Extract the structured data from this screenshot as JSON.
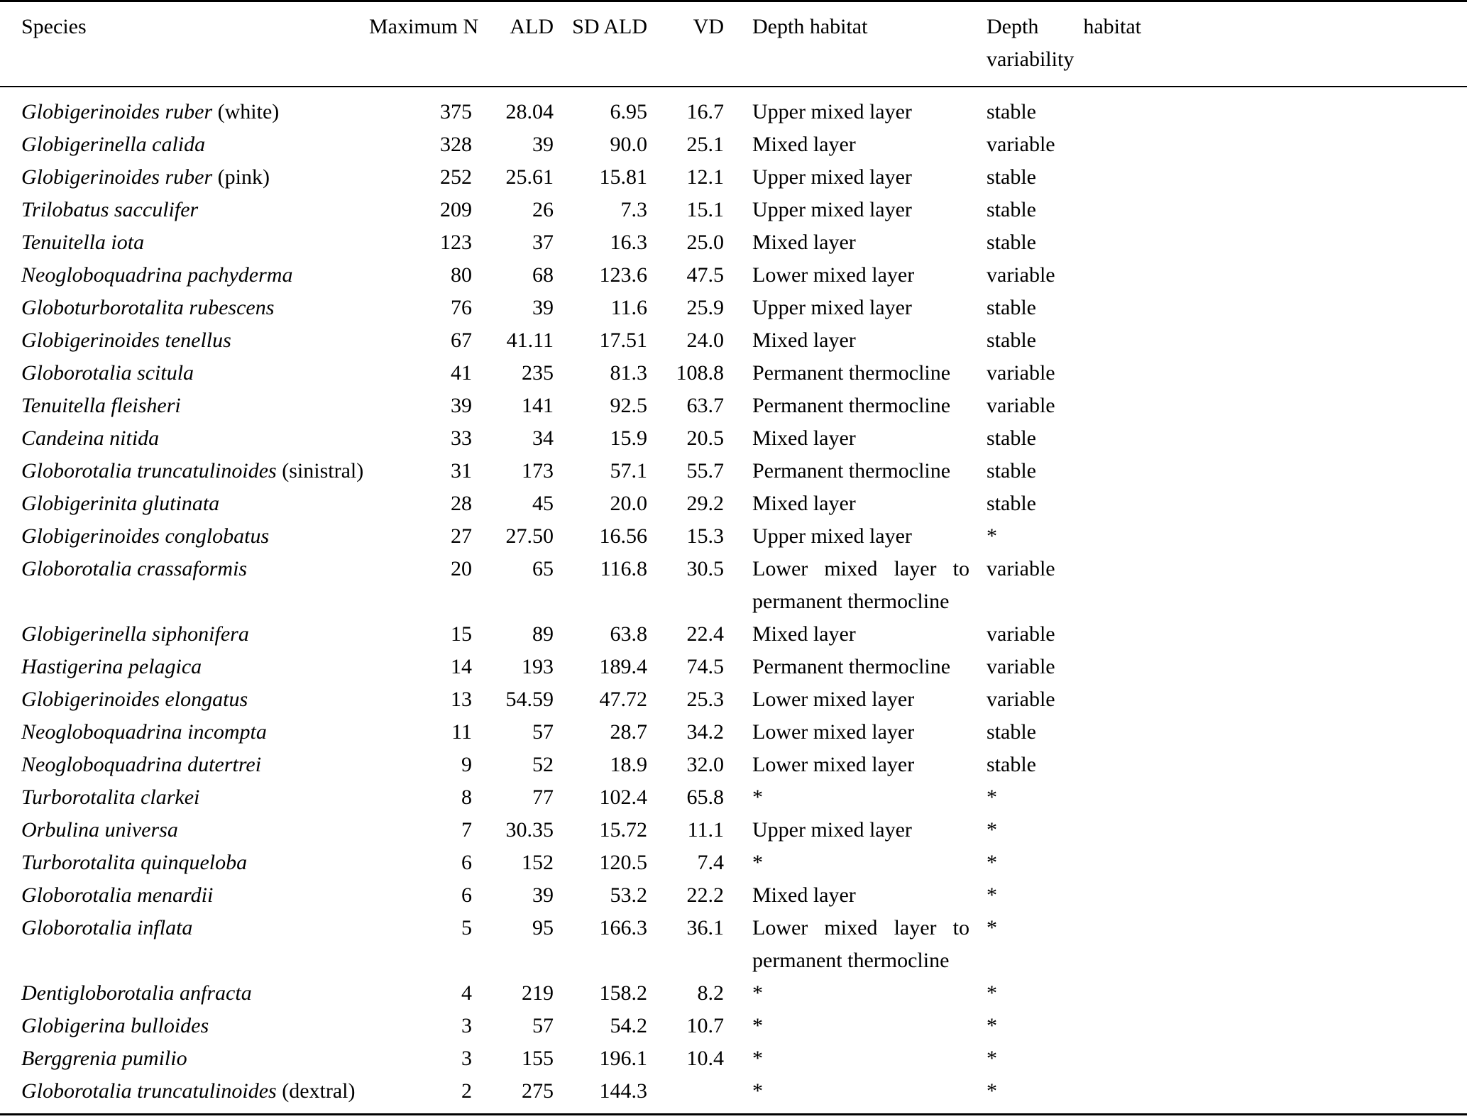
{
  "table": {
    "columns": [
      {
        "key": "species",
        "label": "Species"
      },
      {
        "key": "max_n",
        "label": "Maximum N"
      },
      {
        "key": "ald",
        "label": "ALD"
      },
      {
        "key": "sd_ald",
        "label": "SD ALD"
      },
      {
        "key": "vd",
        "label": "VD"
      },
      {
        "key": "habitat",
        "label": "Depth habitat"
      },
      {
        "key": "variability",
        "label": "Depth habitat variability"
      }
    ],
    "rows": [
      {
        "species": "Globigerinoides ruber",
        "species_suffix": "(white)",
        "max_n": "375",
        "ald": "28.04",
        "sd_ald": "6.95",
        "vd": "16.7",
        "depth_habitat": "Upper mixed layer",
        "variability": "stable"
      },
      {
        "species": "Globigerinella calida",
        "species_suffix": "",
        "max_n": "328",
        "ald": "39",
        "sd_ald": "90.0",
        "vd": "25.1",
        "depth_habitat": "Mixed layer",
        "variability": "variable"
      },
      {
        "species": "Globigerinoides ruber",
        "species_suffix": "(pink)",
        "max_n": "252",
        "ald": "25.61",
        "sd_ald": "15.81",
        "vd": "12.1",
        "depth_habitat": "Upper mixed layer",
        "variability": "stable"
      },
      {
        "species": "Trilobatus sacculifer",
        "species_suffix": "",
        "max_n": "209",
        "ald": "26",
        "sd_ald": "7.3",
        "vd": "15.1",
        "depth_habitat": "Upper mixed layer",
        "variability": "stable"
      },
      {
        "species": "Tenuitella iota",
        "species_suffix": "",
        "max_n": "123",
        "ald": "37",
        "sd_ald": "16.3",
        "vd": "25.0",
        "depth_habitat": "Mixed layer",
        "variability": "stable"
      },
      {
        "species": "Neogloboquadrina pachyderma",
        "species_suffix": "",
        "max_n": "80",
        "ald": "68",
        "sd_ald": "123.6",
        "vd": "47.5",
        "depth_habitat": "Lower mixed layer",
        "variability": "variable"
      },
      {
        "species": "Globoturborotalita rubescens",
        "species_suffix": "",
        "max_n": "76",
        "ald": "39",
        "sd_ald": "11.6",
        "vd": "25.9",
        "depth_habitat": "Upper mixed layer",
        "variability": "stable"
      },
      {
        "species": "Globigerinoides tenellus",
        "species_suffix": "",
        "max_n": "67",
        "ald": "41.11",
        "sd_ald": "17.51",
        "vd": "24.0",
        "depth_habitat": "Mixed layer",
        "variability": "stable"
      },
      {
        "species": "Globorotalia scitula",
        "species_suffix": "",
        "max_n": "41",
        "ald": "235",
        "sd_ald": "81.3",
        "vd": "108.8",
        "depth_habitat": "Permanent thermocline",
        "variability": "variable"
      },
      {
        "species": "Tenuitella fleisheri",
        "species_suffix": "",
        "max_n": "39",
        "ald": "141",
        "sd_ald": "92.5",
        "vd": "63.7",
        "depth_habitat": "Permanent thermocline",
        "variability": "variable"
      },
      {
        "species": "Candeina nitida",
        "species_suffix": "",
        "max_n": "33",
        "ald": "34",
        "sd_ald": "15.9",
        "vd": "20.5",
        "depth_habitat": "Mixed layer",
        "variability": "stable"
      },
      {
        "species": "Globorotalia truncatulinoides",
        "species_suffix": "(sinistral)",
        "max_n": "31",
        "ald": "173",
        "sd_ald": "57.1",
        "vd": "55.7",
        "depth_habitat": "Permanent thermocline",
        "variability": "stable"
      },
      {
        "species": "Globigerinita glutinata",
        "species_suffix": "",
        "max_n": "28",
        "ald": "45",
        "sd_ald": "20.0",
        "vd": "29.2",
        "depth_habitat": "Mixed layer",
        "variability": "stable"
      },
      {
        "species": "Globigerinoides conglobatus",
        "species_suffix": "",
        "max_n": "27",
        "ald": "27.50",
        "sd_ald": "16.56",
        "vd": "15.3",
        "depth_habitat": "Upper mixed layer",
        "variability": "*"
      },
      {
        "species": "Globorotalia crassaformis",
        "species_suffix": "",
        "max_n": "20",
        "ald": "65",
        "sd_ald": "116.8",
        "vd": "30.5",
        "depth_habitat": "Lower mixed layer to permanent thermocline",
        "variability": "variable"
      },
      {
        "species": "Globigerinella siphonifera",
        "species_suffix": "",
        "max_n": "15",
        "ald": "89",
        "sd_ald": "63.8",
        "vd": "22.4",
        "depth_habitat": "Mixed layer",
        "variability": "variable"
      },
      {
        "species": "Hastigerina pelagica",
        "species_suffix": "",
        "max_n": "14",
        "ald": "193",
        "sd_ald": "189.4",
        "vd": "74.5",
        "depth_habitat": "Permanent thermocline",
        "variability": "variable"
      },
      {
        "species": "Globigerinoides elongatus",
        "species_suffix": "",
        "max_n": "13",
        "ald": "54.59",
        "sd_ald": "47.72",
        "vd": "25.3",
        "depth_habitat": "Lower mixed layer",
        "variability": "variable"
      },
      {
        "species": "Neogloboquadrina incompta",
        "species_suffix": "",
        "max_n": "11",
        "ald": "57",
        "sd_ald": "28.7",
        "vd": "34.2",
        "depth_habitat": "Lower mixed layer",
        "variability": "stable"
      },
      {
        "species": "Neogloboquadrina dutertrei",
        "species_suffix": "",
        "max_n": "9",
        "ald": "52",
        "sd_ald": "18.9",
        "vd": "32.0",
        "depth_habitat": "Lower mixed layer",
        "variability": "stable"
      },
      {
        "species": "Turborotalita clarkei",
        "species_suffix": "",
        "max_n": "8",
        "ald": "77",
        "sd_ald": "102.4",
        "vd": "65.8",
        "depth_habitat": "*",
        "variability": "*"
      },
      {
        "species": "Orbulina universa",
        "species_suffix": "",
        "max_n": "7",
        "ald": "30.35",
        "sd_ald": "15.72",
        "vd": "11.1",
        "depth_habitat": "Upper mixed layer",
        "variability": "*"
      },
      {
        "species": "Turborotalita quinqueloba",
        "species_suffix": "",
        "max_n": "6",
        "ald": "152",
        "sd_ald": "120.5",
        "vd": "7.4",
        "depth_habitat": "*",
        "variability": "*"
      },
      {
        "species": "Globorotalia menardii",
        "species_suffix": "",
        "max_n": "6",
        "ald": "39",
        "sd_ald": "53.2",
        "vd": "22.2",
        "depth_habitat": "Mixed layer",
        "variability": "*"
      },
      {
        "species": "Globorotalia inflata",
        "species_suffix": "",
        "max_n": "5",
        "ald": "95",
        "sd_ald": "166.3",
        "vd": "36.1",
        "depth_habitat": "Lower mixed layer to permanent thermocline",
        "variability": "*"
      },
      {
        "species": "Dentigloborotalia anfracta",
        "species_suffix": "",
        "max_n": "4",
        "ald": "219",
        "sd_ald": "158.2",
        "vd": "8.2",
        "depth_habitat": "*",
        "variability": "*"
      },
      {
        "species": "Globigerina bulloides",
        "species_suffix": "",
        "max_n": "3",
        "ald": "57",
        "sd_ald": "54.2",
        "vd": "10.7",
        "depth_habitat": "*",
        "variability": "*"
      },
      {
        "species": "Berggrenia pumilio",
        "species_suffix": "",
        "max_n": "3",
        "ald": "155",
        "sd_ald": "196.1",
        "vd": "10.4",
        "depth_habitat": "*",
        "variability": "*"
      },
      {
        "species": "Globorotalia truncatulinoides",
        "species_suffix": "(dextral)",
        "max_n": "2",
        "ald": "275",
        "sd_ald": "144.3",
        "vd": "",
        "depth_habitat": "*",
        "variability": "*"
      }
    ]
  }
}
